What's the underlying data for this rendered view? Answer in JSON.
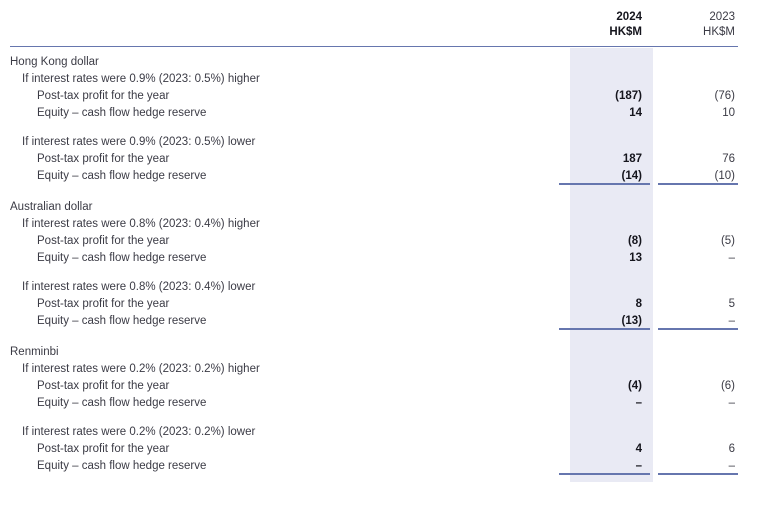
{
  "table": {
    "columns": [
      {
        "year": "2024",
        "unit": "HK$M"
      },
      {
        "year": "2023",
        "unit": "HK$M"
      }
    ],
    "colors": {
      "rule_accent": "#6676ae",
      "column_highlight": "#e9eaf4",
      "text": "#3b3b45",
      "emphasis_text": "#15151d"
    },
    "sections": [
      {
        "currency": "Hong Kong dollar",
        "blocks": [
          {
            "condition": "If interest rates were 0.9% (2023: 0.5%) higher",
            "rows": [
              {
                "label": "Post-tax profit for the year",
                "v2024": "(187)",
                "v2023": "(76)"
              },
              {
                "label": "Equity – cash flow hedge reserve",
                "v2024": "14",
                "v2023": "10"
              }
            ]
          },
          {
            "condition": "If interest rates were 0.9% (2023: 0.5%) lower",
            "rows": [
              {
                "label": "Post-tax profit for the year",
                "v2024": "187",
                "v2023": "76"
              },
              {
                "label": "Equity – cash flow hedge reserve",
                "v2024": "(14)",
                "v2023": "(10)"
              }
            ]
          }
        ]
      },
      {
        "currency": "Australian dollar",
        "blocks": [
          {
            "condition": "If interest rates were 0.8% (2023: 0.4%) higher",
            "rows": [
              {
                "label": "Post-tax profit for the year",
                "v2024": "(8)",
                "v2023": "(5)"
              },
              {
                "label": "Equity – cash flow hedge reserve",
                "v2024": "13",
                "v2023": "–"
              }
            ]
          },
          {
            "condition": "If interest rates were 0.8% (2023: 0.4%) lower",
            "rows": [
              {
                "label": "Post-tax profit for the year",
                "v2024": "8",
                "v2023": "5"
              },
              {
                "label": "Equity – cash flow hedge reserve",
                "v2024": "(13)",
                "v2023": "–"
              }
            ]
          }
        ]
      },
      {
        "currency": "Renminbi",
        "blocks": [
          {
            "condition": "If interest rates were 0.2% (2023: 0.2%) higher",
            "rows": [
              {
                "label": "Post-tax profit for the year",
                "v2024": "(4)",
                "v2023": "(6)"
              },
              {
                "label": "Equity – cash flow hedge reserve",
                "v2024": "–",
                "v2023": "–"
              }
            ]
          },
          {
            "condition": "If interest rates were 0.2% (2023: 0.2%) lower",
            "rows": [
              {
                "label": "Post-tax profit for the year",
                "v2024": "4",
                "v2023": "6"
              },
              {
                "label": "Equity – cash flow hedge reserve",
                "v2024": "–",
                "v2023": "–"
              }
            ]
          }
        ]
      }
    ]
  }
}
